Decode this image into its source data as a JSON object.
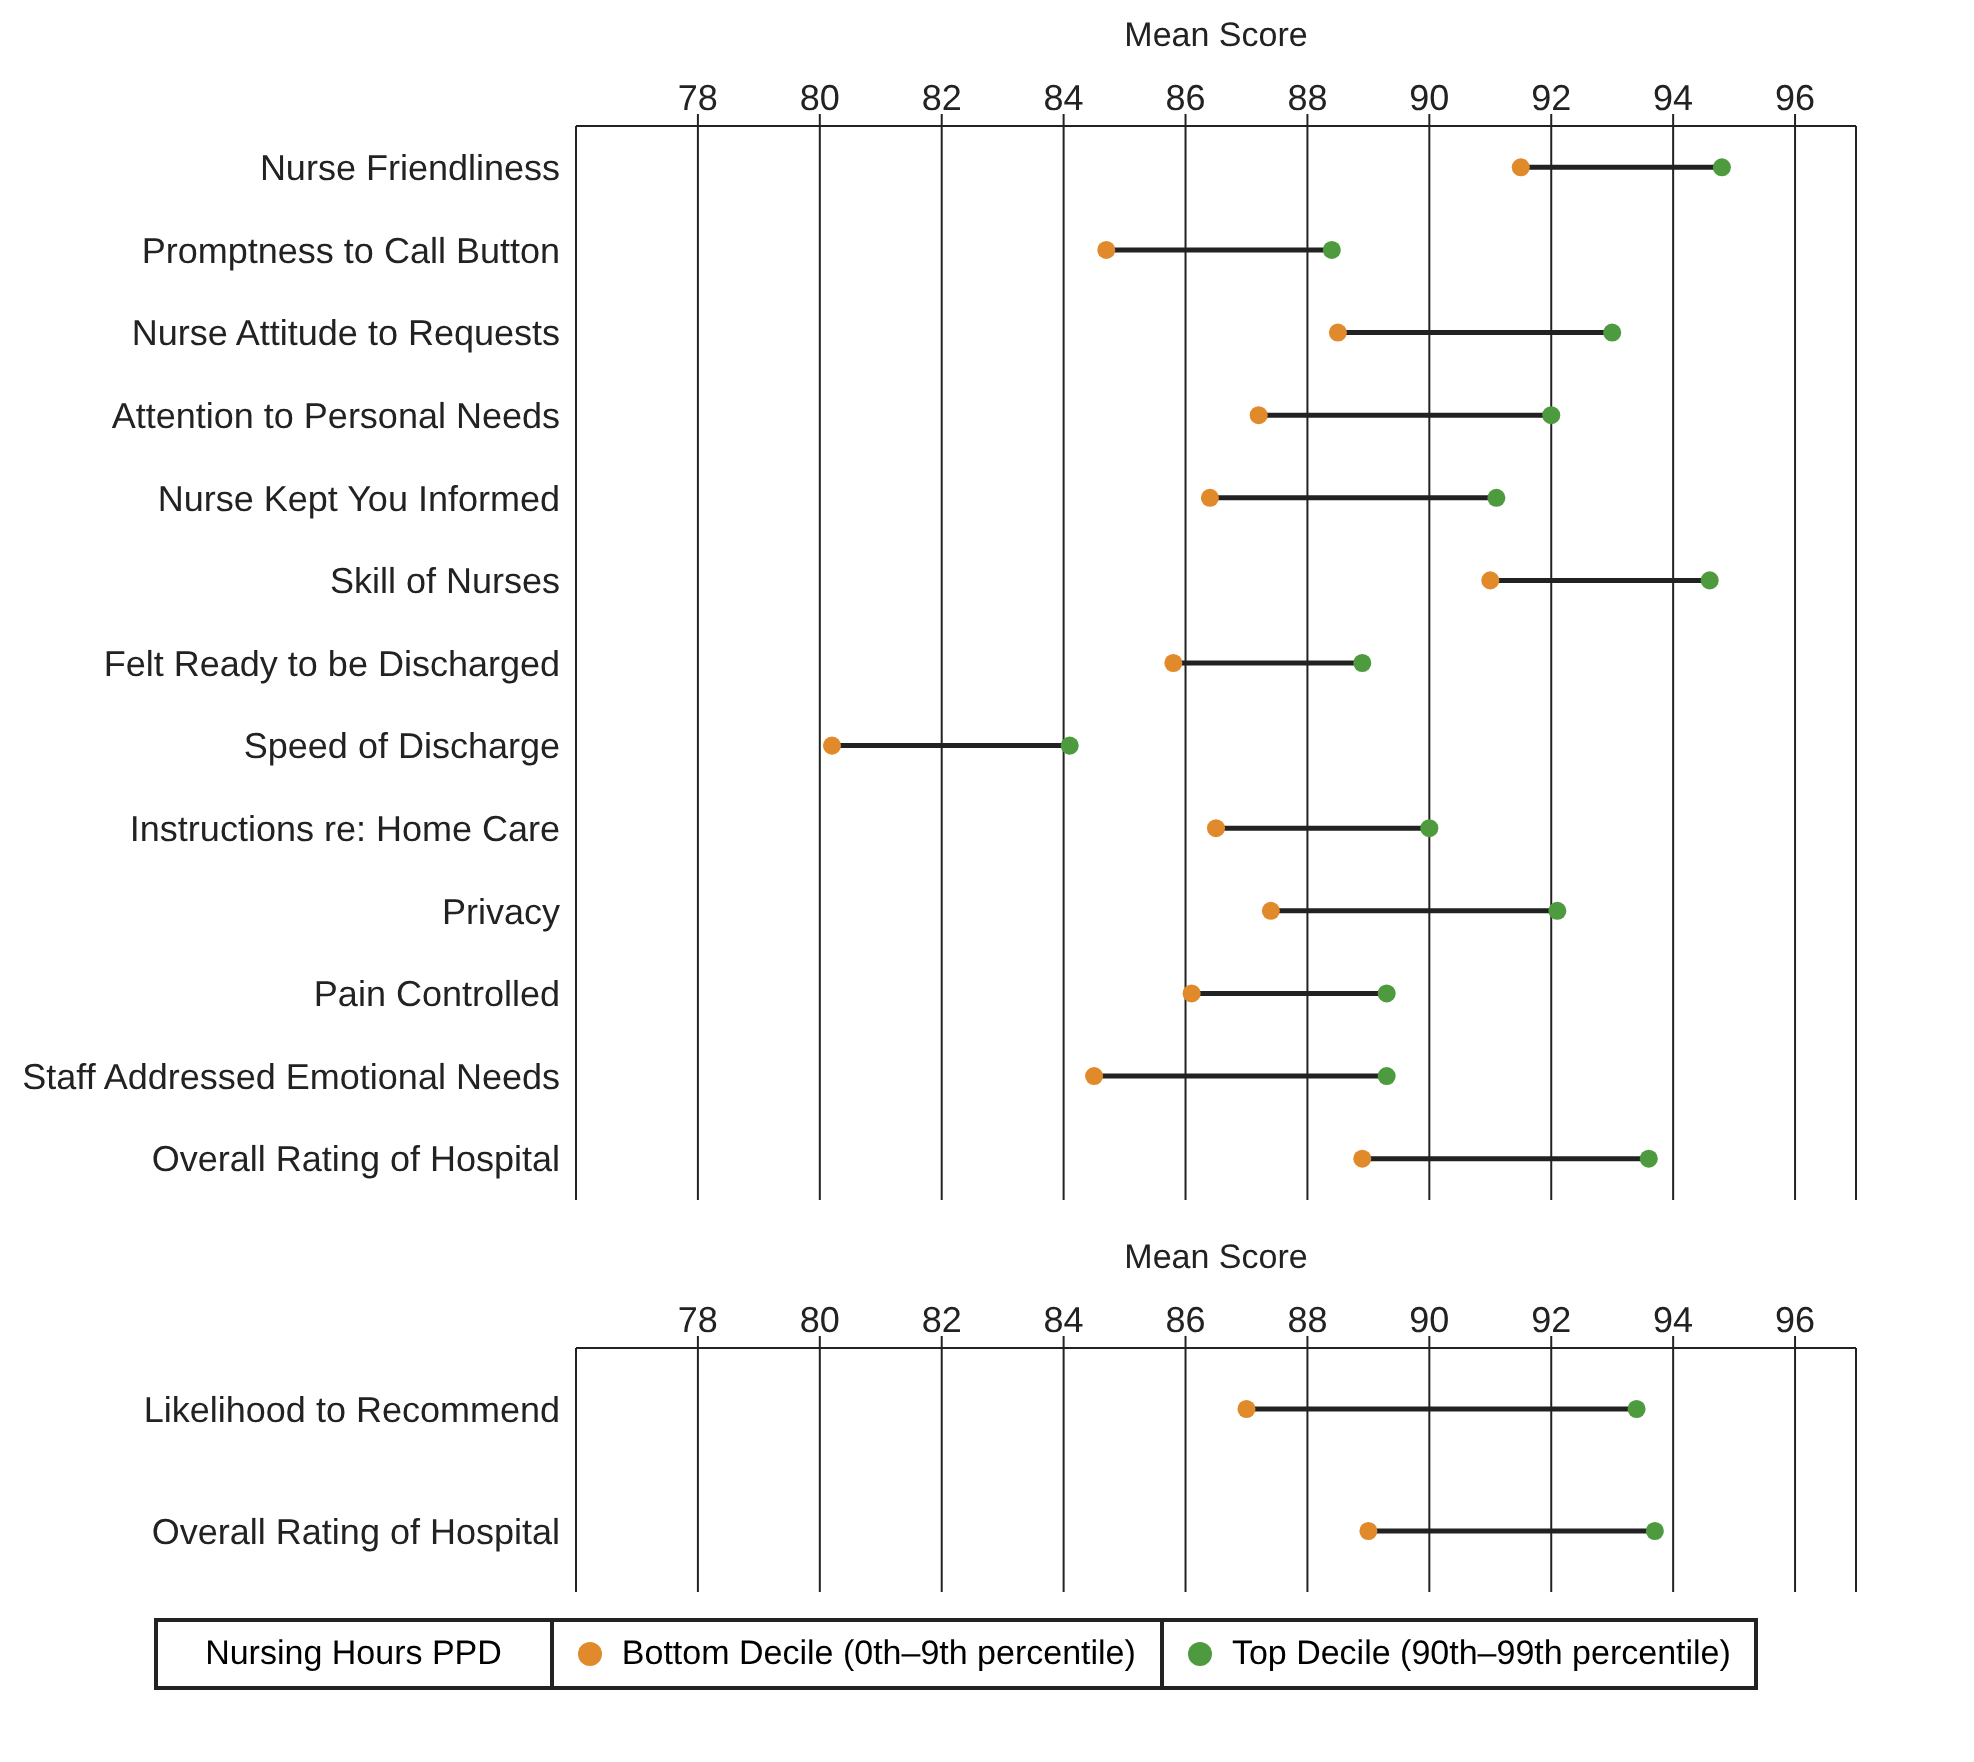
{
  "chart_data": [
    {
      "type": "scatter",
      "xlabel": "Mean Score",
      "categories": [
        "Nurse Friendliness",
        "Promptness to Call Button",
        "Nurse Attitude to Requests",
        "Attention to Personal Needs",
        "Nurse Kept You Informed",
        "Skill of Nurses",
        "Felt Ready to be Discharged",
        "Speed of Discharge",
        "Instructions re: Home Care",
        "Privacy",
        "Pain Controlled",
        "Staff Addressed Emotional Needs",
        "Overall Rating of Hospital"
      ],
      "series": [
        {
          "color": "#e08a2c",
          "values": [
            91.5,
            84.7,
            88.5,
            87.2,
            86.4,
            91.0,
            85.8,
            80.2,
            86.5,
            87.4,
            86.1,
            84.5,
            88.9
          ]
        },
        {
          "color": "#4e9a3e",
          "values": [
            94.8,
            88.4,
            93.0,
            92.0,
            91.1,
            94.6,
            88.9,
            84.1,
            90.0,
            92.1,
            89.3,
            89.3,
            93.6
          ]
        }
      ],
      "orientation": "horizontal",
      "xlim": [
        76,
        97
      ],
      "xticks": [
        78,
        80,
        82,
        84,
        86,
        88,
        90,
        92,
        94,
        96
      ],
      "grid": "x",
      "marker": "circle",
      "legend": false
    },
    {
      "type": "scatter",
      "xlabel": "Mean Score",
      "categories": [
        "Likelihood to Recommend",
        "Overall Rating of Hospital"
      ],
      "series": [
        {
          "name": "Bottom Decile (0th–9th percentile)",
          "color": "#e08a2c",
          "values": [
            87.0,
            89.0
          ]
        },
        {
          "name": "Top Decile (90th–99th percentile)",
          "color": "#4e9a3e",
          "values": [
            93.4,
            93.7
          ]
        }
      ],
      "orientation": "horizontal",
      "xlim": [
        76,
        97
      ],
      "xticks": [
        78,
        80,
        82,
        84,
        86,
        88,
        90,
        92,
        94,
        96
      ],
      "grid": "x",
      "marker": "circle",
      "legend": "bottom",
      "legend_title": "Nursing Hours PPD"
    }
  ]
}
